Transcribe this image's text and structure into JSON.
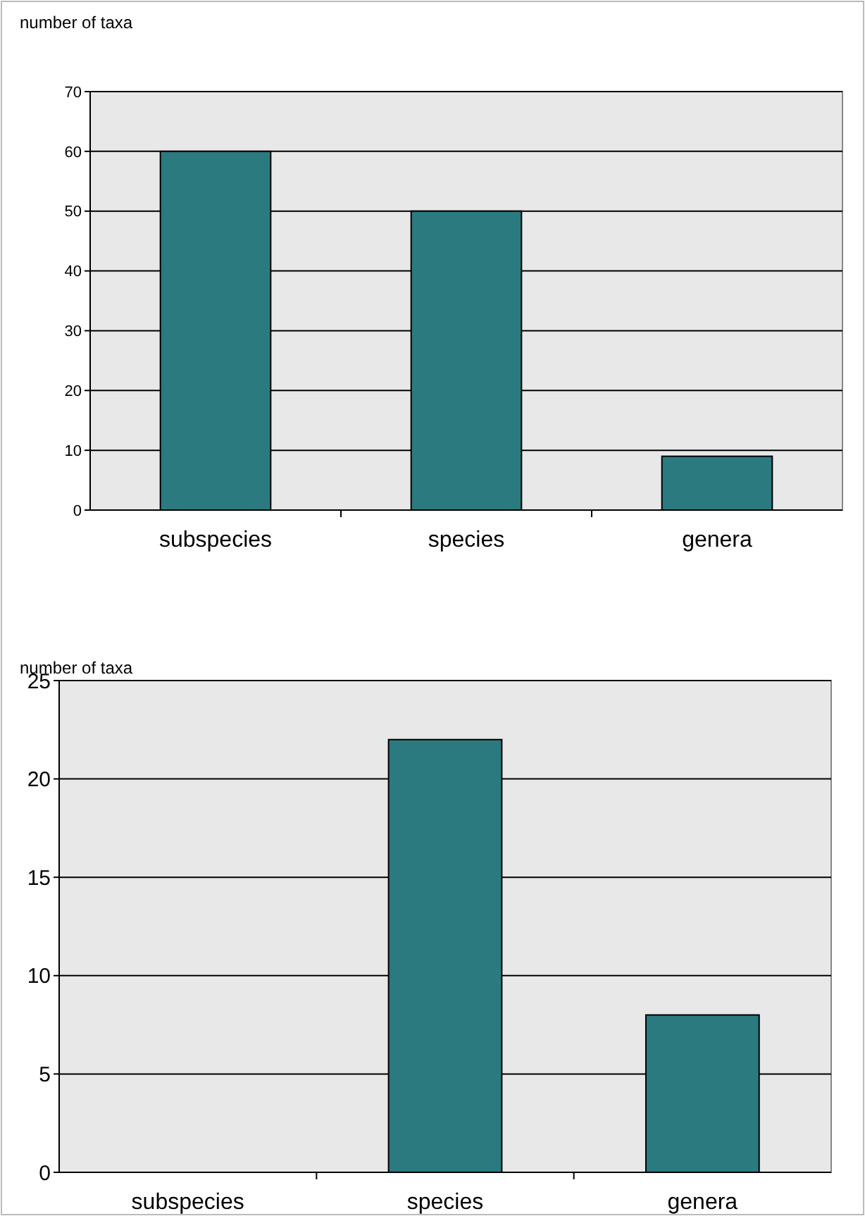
{
  "chart_data": [
    {
      "type": "bar",
      "ylabel": "number of taxa",
      "categories": [
        "subspecies",
        "species",
        "genera"
      ],
      "values": [
        60,
        50,
        9
      ],
      "color": "#2b7a80",
      "ylim": [
        0,
        70
      ],
      "yticks": [
        0,
        10,
        20,
        30,
        40,
        50,
        60,
        70
      ],
      "grid": "y"
    },
    {
      "type": "bar",
      "ylabel": "number of taxa",
      "categories": [
        "subspecies",
        "species",
        "genera"
      ],
      "values": [
        0,
        22,
        8
      ],
      "color": "#2b7a80",
      "ylim": [
        0,
        25
      ],
      "yticks": [
        0,
        5,
        10,
        15,
        20,
        25
      ],
      "grid": "y"
    }
  ]
}
